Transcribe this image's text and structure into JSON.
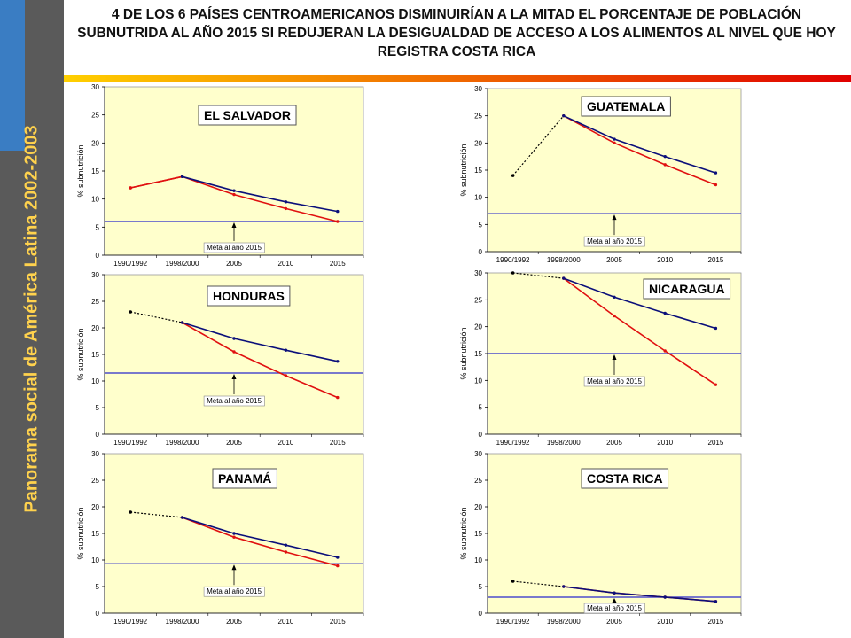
{
  "page": {
    "title": "4  DE LOS  6  PAÍSES CENTROAMERICANOS DISMINUIRÍAN A LA MITAD EL PORCENTAJE DE POBLACIÓN SUBNUTRIDA AL AÑO  2015  SI REDUJERAN  LA DESIGUALDAD DE ACCESO A LOS ALIMENTOS AL NIVEL QUE HOY REGISTRA COSTA RICA",
    "sidebar_text": "Panorama social de América Latina 2002-2003"
  },
  "colors": {
    "plot_bg": "#ffffcc",
    "series_blue": "#0b0f7a",
    "series_red": "#e01010",
    "target_line": "#4d4dcc",
    "dotted_line": "#000000",
    "sidebar_bg": "#5a5a5a",
    "sidebar_accent": "#3a7dc3",
    "sidebar_text": "#ffd24d",
    "rule_start": "#ffd000",
    "rule_end": "#e00000"
  },
  "chart_data": [
    {
      "type": "line",
      "country": "EL SALVADOR",
      "categories": [
        "1990/1992",
        "1998/2000",
        "2005",
        "2010",
        "2015"
      ],
      "ylabel": "% subnutrición",
      "ylim": [
        0,
        30
      ],
      "yticks": [
        0,
        5,
        10,
        15,
        20,
        25,
        30
      ],
      "target": 6,
      "target_label": "Meta al año 2015",
      "dotted": [
        12,
        14
      ],
      "blue": [
        null,
        14,
        11.5,
        9.5,
        7.8
      ],
      "red": [
        12,
        14,
        10.8,
        8.3,
        6
      ]
    },
    {
      "type": "line",
      "country": "GUATEMALA",
      "categories": [
        "1990/1992",
        "1998/2000",
        "2005",
        "2010",
        "2015"
      ],
      "ylabel": "% subnutrición",
      "ylim": [
        0,
        30
      ],
      "yticks": [
        0,
        5,
        10,
        15,
        20,
        25,
        30
      ],
      "target": 7,
      "target_label": "Meta al año 2015",
      "dotted": [
        14,
        25
      ],
      "blue": [
        null,
        25,
        20.7,
        17.5,
        14.5
      ],
      "red": [
        null,
        25,
        20,
        16,
        12.3
      ]
    },
    {
      "type": "line",
      "country": "HONDURAS",
      "categories": [
        "1990/1992",
        "1998/2000",
        "2005",
        "2010",
        "2015"
      ],
      "ylabel": "% subnutrición",
      "ylim": [
        0,
        30
      ],
      "yticks": [
        0,
        5,
        10,
        15,
        20,
        25,
        30
      ],
      "target": 11.5,
      "target_label": "Meta al año 2015",
      "dotted": [
        23,
        21
      ],
      "blue": [
        null,
        21,
        18,
        15.8,
        13.7
      ],
      "red": [
        null,
        21,
        15.5,
        11,
        6.9
      ]
    },
    {
      "type": "line",
      "country": "NICARAGUA",
      "categories": [
        "1990/1992",
        "1998/2000",
        "2005",
        "2010",
        "2015"
      ],
      "ylabel": "% subnutrición",
      "ylim": [
        0,
        30
      ],
      "yticks": [
        0,
        5,
        10,
        15,
        20,
        25,
        30
      ],
      "target": 15,
      "target_label": "Meta al año 2015",
      "dotted": [
        30,
        29
      ],
      "blue": [
        null,
        29,
        25.5,
        22.5,
        19.7
      ],
      "red": [
        null,
        29,
        22,
        15.5,
        9.2
      ]
    },
    {
      "type": "line",
      "country": "PANAMÁ",
      "categories": [
        "1990/1992",
        "1998/2000",
        "2005",
        "2010",
        "2015"
      ],
      "ylabel": "% subnutrición",
      "ylim": [
        0,
        30
      ],
      "yticks": [
        0,
        5,
        10,
        15,
        20,
        25,
        30
      ],
      "target": 9.3,
      "target_label": "Meta al año 2015",
      "dotted": [
        19,
        18
      ],
      "blue": [
        null,
        18,
        15,
        12.8,
        10.5
      ],
      "red": [
        null,
        18,
        14.3,
        11.5,
        8.9
      ]
    },
    {
      "type": "line",
      "country": "COSTA RICA",
      "categories": [
        "1990/1992",
        "1998/2000",
        "2005",
        "2010",
        "2015"
      ],
      "ylabel": "% subnutrición",
      "ylim": [
        0,
        30
      ],
      "yticks": [
        0,
        5,
        10,
        15,
        20,
        25,
        30
      ],
      "target": 3,
      "target_label": "Meta al año 2015",
      "dotted": [
        6,
        5
      ],
      "blue": [
        null,
        5,
        3.8,
        3,
        2.2
      ],
      "red": [
        null,
        5,
        3.8,
        3,
        2.2
      ]
    }
  ]
}
